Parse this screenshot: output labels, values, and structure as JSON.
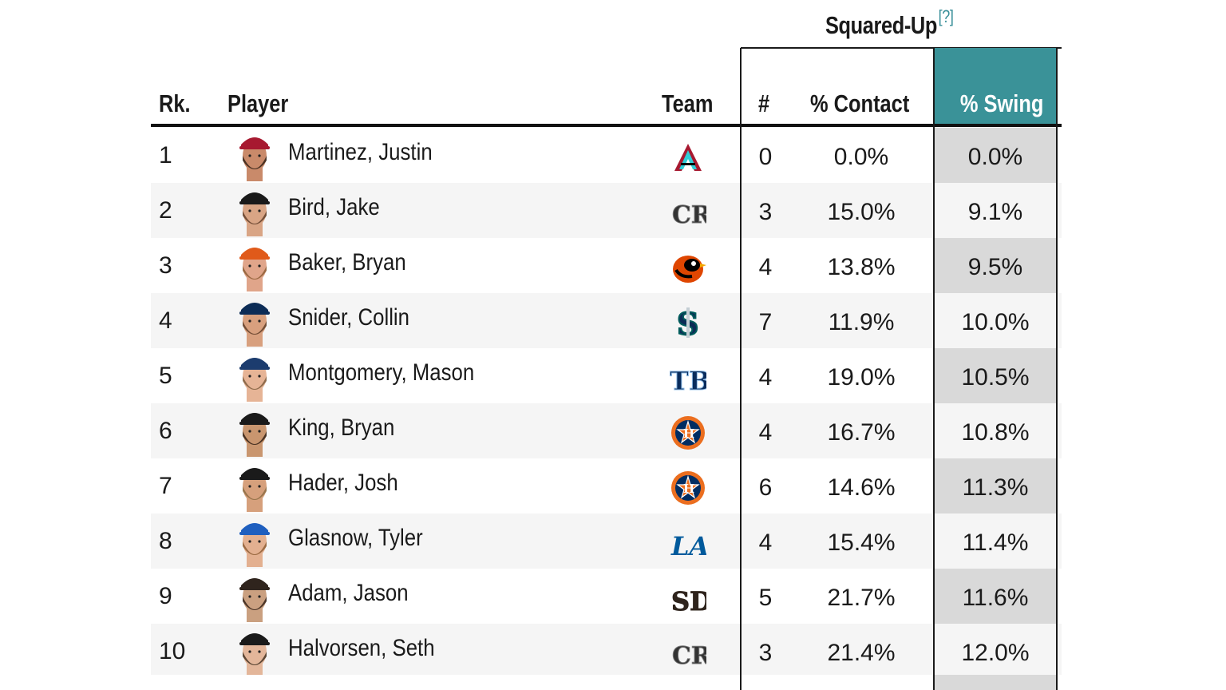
{
  "group": {
    "title": "Squared-Up",
    "help": "[?]"
  },
  "headers": {
    "rank": "Rk.",
    "player": "Player",
    "team": "Team",
    "count": "#",
    "contact": "% Contact",
    "swing": "% Swing"
  },
  "colors": {
    "accent": "#3a9298",
    "help_link": "#3a8f99",
    "swing_column": "#d9d9d9"
  },
  "rows": [
    {
      "rank": "1",
      "player": "Martinez, Justin",
      "team_icon": "diamondbacks-logo",
      "count": "0",
      "contact": "0.0%",
      "swing": "0.0%"
    },
    {
      "rank": "2",
      "player": "Bird, Jake",
      "team_icon": "rockies-logo",
      "count": "3",
      "contact": "15.0%",
      "swing": "9.1%"
    },
    {
      "rank": "3",
      "player": "Baker, Bryan",
      "team_icon": "orioles-logo",
      "count": "4",
      "contact": "13.8%",
      "swing": "9.5%"
    },
    {
      "rank": "4",
      "player": "Snider, Collin",
      "team_icon": "mariners-logo",
      "count": "7",
      "contact": "11.9%",
      "swing": "10.0%"
    },
    {
      "rank": "5",
      "player": "Montgomery, Mason",
      "team_icon": "rays-logo",
      "count": "4",
      "contact": "19.0%",
      "swing": "10.5%"
    },
    {
      "rank": "6",
      "player": "King, Bryan",
      "team_icon": "astros-logo",
      "count": "4",
      "contact": "16.7%",
      "swing": "10.8%"
    },
    {
      "rank": "7",
      "player": "Hader, Josh",
      "team_icon": "astros-logo",
      "count": "6",
      "contact": "14.6%",
      "swing": "11.3%"
    },
    {
      "rank": "8",
      "player": "Glasnow, Tyler",
      "team_icon": "dodgers-logo",
      "count": "4",
      "contact": "15.4%",
      "swing": "11.4%"
    },
    {
      "rank": "9",
      "player": "Adam, Jason",
      "team_icon": "padres-logo",
      "count": "5",
      "contact": "21.7%",
      "swing": "11.6%"
    },
    {
      "rank": "10",
      "player": "Halvorsen, Seth",
      "team_icon": "rockies-logo",
      "count": "3",
      "contact": "21.4%",
      "swing": "12.0%"
    }
  ],
  "team_logo_text": {
    "rockies": "CR",
    "rays": "TB",
    "dodgers": "LA",
    "padres": "SD",
    "mariners": "S",
    "astros": "H",
    "diamondbacks": "A"
  }
}
